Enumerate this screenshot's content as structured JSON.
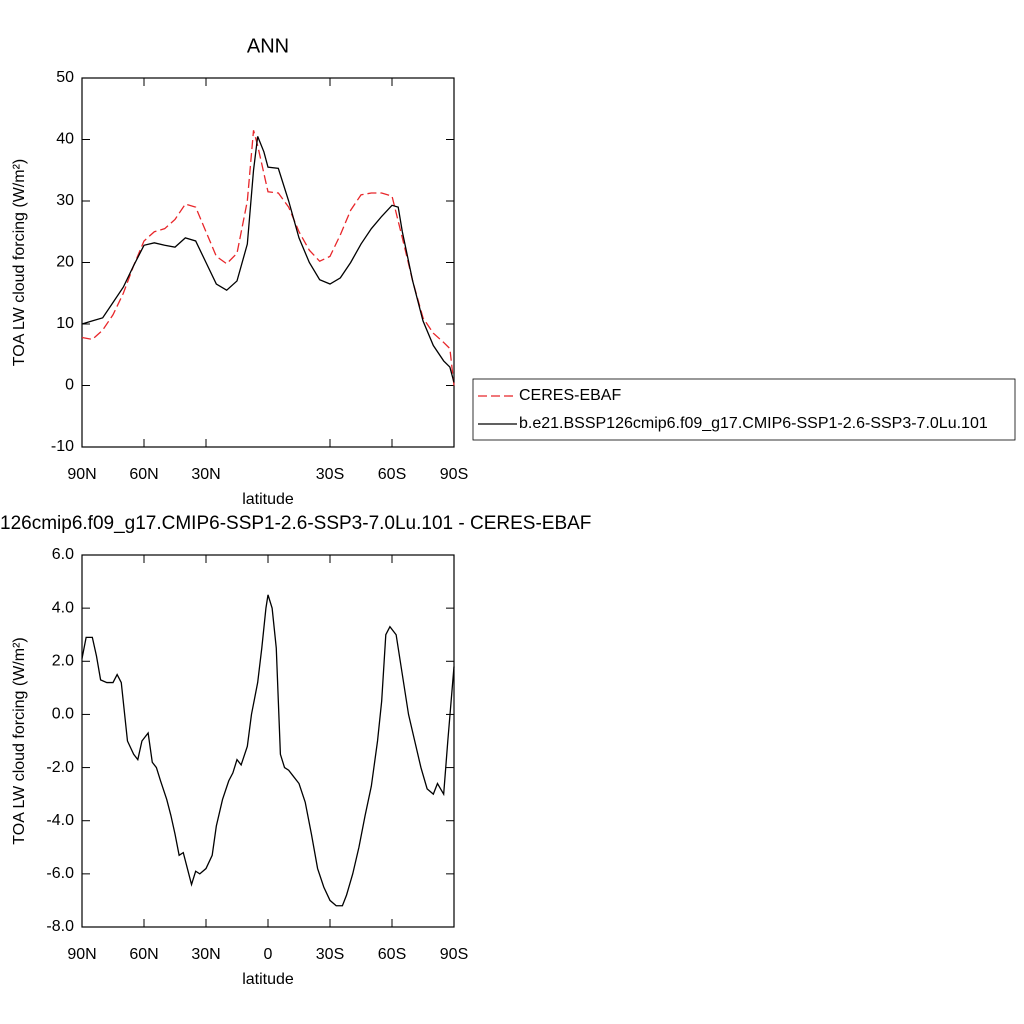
{
  "chart_data": [
    {
      "type": "line",
      "title": "ANN",
      "xlabel": "latitude",
      "ylabel": "TOA LW cloud forcing (W/m²)",
      "xlim": [
        90,
        -90
      ],
      "xticks": [
        {
          "value": 90,
          "label": "90N"
        },
        {
          "value": 60,
          "label": "60N"
        },
        {
          "value": 30,
          "label": "30N"
        },
        {
          "value": -30,
          "label": "30S"
        },
        {
          "value": -60,
          "label": "60S"
        },
        {
          "value": -90,
          "label": "90S"
        }
      ],
      "ylim": [
        -10,
        50
      ],
      "yticks": [
        -10,
        0,
        10,
        20,
        30,
        40,
        50
      ],
      "legend": "outside-right",
      "series": [
        {
          "name": "CERES-EBAF",
          "color": "#e8262a",
          "line_style": "dashed",
          "x": [
            90,
            85,
            80,
            75,
            70,
            65,
            60,
            55,
            50,
            45,
            40,
            35,
            30,
            25,
            20,
            15,
            10,
            7,
            5,
            0,
            -5,
            -10,
            -15,
            -20,
            -25,
            -30,
            -35,
            -40,
            -45,
            -50,
            -55,
            -60,
            -65,
            -70,
            -75,
            -80,
            -85,
            -88,
            -90
          ],
          "values": [
            7.8,
            7.5,
            9,
            11.5,
            15,
            19.5,
            23.5,
            25,
            25.5,
            27,
            29.5,
            29,
            25,
            21,
            19.8,
            21.5,
            30,
            41.5,
            39,
            31.5,
            31.3,
            29,
            25,
            22,
            20.2,
            21,
            24.5,
            28.5,
            31,
            31.3,
            31.3,
            30.8,
            24,
            17,
            11,
            8.5,
            7,
            6,
            0
          ]
        },
        {
          "name": "b.e21.BSSP126cmip6.f09_g17.CMIP6-SSP1-2.6-SSP3-7.0Lu.101",
          "color": "#000000",
          "line_style": "solid",
          "x": [
            90,
            85,
            80,
            75,
            70,
            65,
            60,
            55,
            50,
            45,
            40,
            35,
            30,
            25,
            20,
            15,
            10,
            7,
            5,
            2,
            0,
            -5,
            -10,
            -15,
            -20,
            -25,
            -30,
            -35,
            -40,
            -45,
            -50,
            -55,
            -60,
            -63,
            -65,
            -70,
            -75,
            -80,
            -85,
            -88,
            -90
          ],
          "values": [
            10,
            10.5,
            11,
            13.5,
            16,
            19.5,
            22.8,
            23.2,
            22.8,
            22.5,
            24,
            23.5,
            20,
            16.5,
            15.5,
            17,
            23,
            35,
            40.5,
            38,
            35.5,
            35.3,
            30,
            24,
            20,
            17.2,
            16.5,
            17.5,
            20,
            23,
            25.5,
            27.5,
            29.3,
            29,
            25,
            17,
            10.5,
            6.5,
            4,
            3,
            0.5
          ]
        }
      ]
    },
    {
      "type": "line",
      "title": "126cmip6.f09_g17.CMIP6-SSP1-2.6-SSP3-7.0Lu.101 - CERES-EBAF",
      "xlabel": "latitude",
      "ylabel": "TOA LW cloud forcing (W/m²)",
      "xlim": [
        90,
        -90
      ],
      "xticks": [
        {
          "value": 90,
          "label": "90N"
        },
        {
          "value": 60,
          "label": "60N"
        },
        {
          "value": 30,
          "label": "30N"
        },
        0,
        {
          "value": -30,
          "label": "30S"
        },
        {
          "value": -60,
          "label": "60S"
        },
        {
          "value": -90,
          "label": "90S"
        }
      ],
      "ylim": [
        -8,
        6
      ],
      "yticks": [
        {
          "value": -8,
          "label": "-8.0"
        },
        {
          "value": -6,
          "label": "-6.0"
        },
        {
          "value": -4,
          "label": "-4.0"
        },
        {
          "value": -2,
          "label": "-2.0"
        },
        {
          "value": 0,
          "label": "0.0"
        },
        {
          "value": 2,
          "label": "2.0"
        },
        {
          "value": 4,
          "label": "4.0"
        },
        {
          "value": 6,
          "label": "6.0"
        }
      ],
      "series": [
        {
          "color": "#000000",
          "line_style": "solid",
          "x": [
            90,
            88,
            85,
            83,
            81,
            78,
            75,
            73,
            71,
            68,
            65,
            63,
            61,
            58,
            56,
            54,
            52,
            49,
            47,
            45,
            43,
            41,
            39,
            37,
            35,
            33,
            30,
            27,
            25,
            22,
            19,
            17,
            15,
            13,
            10,
            8,
            5,
            3,
            1,
            0,
            -2,
            -4,
            -5,
            -6,
            -8,
            -10,
            -12,
            -15,
            -18,
            -21,
            -24,
            -27,
            -30,
            -33,
            -36,
            -38,
            -41,
            -44,
            -47,
            -50,
            -53,
            -55,
            -57,
            -59,
            -62,
            -65,
            -68,
            -71,
            -74,
            -77,
            -80,
            -82,
            -85,
            -87,
            -90
          ],
          "values": [
            2.1,
            2.9,
            2.9,
            2.2,
            1.3,
            1.2,
            1.2,
            1.5,
            1.2,
            -1.0,
            -1.5,
            -1.7,
            -1.0,
            -0.7,
            -1.8,
            -2.0,
            -2.5,
            -3.2,
            -3.8,
            -4.5,
            -5.3,
            -5.2,
            -5.8,
            -6.4,
            -5.9,
            -6.0,
            -5.8,
            -5.3,
            -4.2,
            -3.2,
            -2.5,
            -2.2,
            -1.7,
            -1.9,
            -1.2,
            0.0,
            1.2,
            2.5,
            4.0,
            4.5,
            4.0,
            2.5,
            0.5,
            -1.5,
            -2.0,
            -2.1,
            -2.3,
            -2.6,
            -3.3,
            -4.5,
            -5.8,
            -6.5,
            -7.0,
            -7.2,
            -7.2,
            -6.8,
            -6.0,
            -5.0,
            -3.8,
            -2.7,
            -1.0,
            0.5,
            3.0,
            3.3,
            3.0,
            1.5,
            0.0,
            -1.0,
            -2.0,
            -2.8,
            -3.0,
            -2.6,
            -3.0,
            -1.0,
            1.8
          ]
        }
      ]
    }
  ]
}
